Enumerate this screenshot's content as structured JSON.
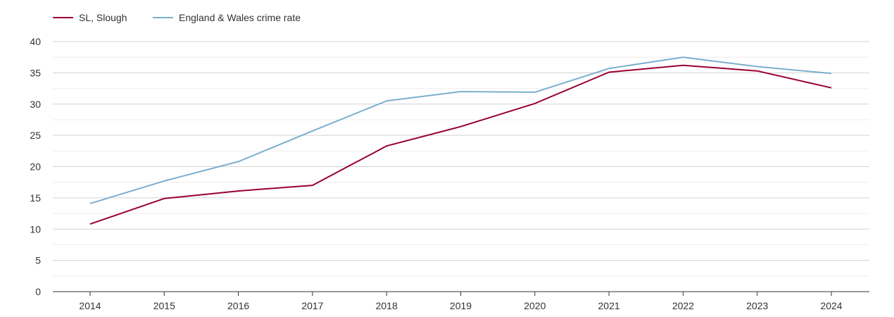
{
  "chart_data": {
    "type": "line",
    "title": "",
    "xlabel": "",
    "ylabel": "",
    "x": [
      "2014",
      "2015",
      "2016",
      "2017",
      "2018",
      "2019",
      "2020",
      "2021",
      "2022",
      "2023",
      "2024"
    ],
    "ylim": [
      0,
      40
    ],
    "yticks": [
      0,
      5,
      10,
      15,
      20,
      25,
      30,
      35,
      40
    ],
    "grid": true,
    "legend": "top-left",
    "series": [
      {
        "name": "SL, Slough",
        "color": "#990033",
        "values": [
          10.8,
          14.9,
          16.1,
          17.0,
          23.3,
          26.4,
          30.1,
          35.1,
          36.2,
          35.3,
          32.6
        ]
      },
      {
        "name": "England & Wales crime rate",
        "color": "#7bafd0",
        "values": [
          14.1,
          17.7,
          20.8,
          25.7,
          30.5,
          32.0,
          31.9,
          35.7,
          37.5,
          36.0,
          34.9
        ]
      }
    ]
  }
}
